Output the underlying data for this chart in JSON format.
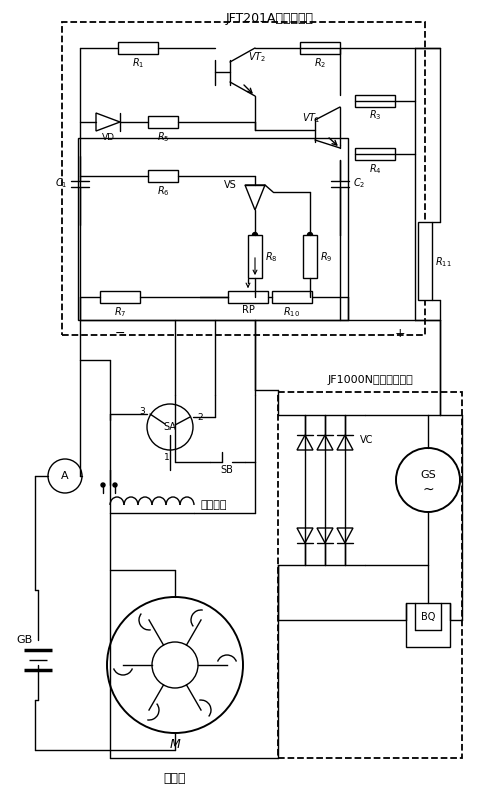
{
  "title_top": "JFT201A电压调节器",
  "title_bottom_left": "启动机",
  "title_bottom_right": "JF1000N硅整流发电机",
  "label_diancikaiguan": "电磁开关",
  "bg_color": "#ffffff",
  "line_color": "#000000"
}
